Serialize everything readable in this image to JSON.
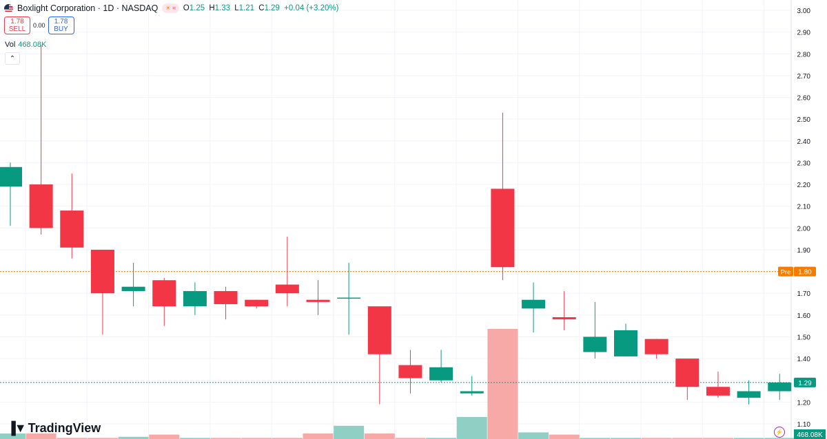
{
  "header": {
    "symbol": "Boxlight Corporation",
    "sep1": "·",
    "interval": "1D",
    "sep2": "·",
    "exchange": "NASDAQ",
    "open_label": "O",
    "open": "1.25",
    "high_label": "H",
    "high": "1.33",
    "low_label": "L",
    "low": "1.21",
    "close_label": "C",
    "close": "1.29",
    "change": "+0.04 (+3.20%)"
  },
  "trade": {
    "sell_price": "1.78",
    "sell_label": "SELL",
    "spread": "0.00",
    "buy_price": "1.78",
    "buy_label": "BUY"
  },
  "volume": {
    "label": "Vol",
    "value": "468.08K",
    "axis_badge": "468.08K"
  },
  "branding": {
    "logo_text": "TradingView"
  },
  "price_lines": {
    "pre": {
      "label": "Pre",
      "value": "1.80",
      "color": "#f57c00"
    },
    "last": {
      "value": "1.29",
      "color": "#089981"
    }
  },
  "colors": {
    "up": "#089981",
    "down": "#f23645",
    "up_vol": "#8fcfc4",
    "down_vol": "#f7a9a7"
  },
  "chart_data": {
    "type": "candlestick",
    "y_axis_ticks": [
      "3.00",
      "2.90",
      "2.80",
      "2.70",
      "2.60",
      "2.50",
      "2.40",
      "2.30",
      "2.20",
      "2.10",
      "2.00",
      "1.90",
      "1.80",
      "1.70",
      "1.60",
      "1.50",
      "1.40",
      "1.30",
      "1.20",
      "1.10"
    ],
    "ylim": [
      1.09,
      3.01
    ],
    "candles": [
      {
        "o": 2.19,
        "h": 2.3,
        "l": 2.01,
        "c": 2.28
      },
      {
        "o": 2.2,
        "h": 2.84,
        "l": 1.97,
        "c": 2.0
      },
      {
        "o": 2.08,
        "h": 2.25,
        "l": 1.86,
        "c": 1.91
      },
      {
        "o": 1.9,
        "h": 1.9,
        "l": 1.51,
        "c": 1.7
      },
      {
        "o": 1.71,
        "h": 1.84,
        "l": 1.64,
        "c": 1.73
      },
      {
        "o": 1.76,
        "h": 1.77,
        "l": 1.55,
        "c": 1.64
      },
      {
        "o": 1.64,
        "h": 1.75,
        "l": 1.6,
        "c": 1.71
      },
      {
        "o": 1.71,
        "h": 1.73,
        "l": 1.58,
        "c": 1.65
      },
      {
        "o": 1.67,
        "h": 1.67,
        "l": 1.63,
        "c": 1.64
      },
      {
        "o": 1.74,
        "h": 1.96,
        "l": 1.64,
        "c": 1.7
      },
      {
        "o": 1.67,
        "h": 1.76,
        "l": 1.6,
        "c": 1.66
      },
      {
        "o": 1.68,
        "h": 1.84,
        "l": 1.51,
        "c": 1.68
      },
      {
        "o": 1.64,
        "h": 1.64,
        "l": 1.19,
        "c": 1.42
      },
      {
        "o": 1.37,
        "h": 1.44,
        "l": 1.24,
        "c": 1.31
      },
      {
        "o": 1.3,
        "h": 1.44,
        "l": 1.29,
        "c": 1.36
      },
      {
        "o": 1.24,
        "h": 1.32,
        "l": 1.23,
        "c": 1.25
      },
      {
        "o": 2.18,
        "h": 2.53,
        "l": 1.76,
        "c": 1.82
      },
      {
        "o": 1.63,
        "h": 1.75,
        "l": 1.52,
        "c": 1.67
      },
      {
        "o": 1.59,
        "h": 1.71,
        "l": 1.53,
        "c": 1.58
      },
      {
        "o": 1.43,
        "h": 1.66,
        "l": 1.4,
        "c": 1.5
      },
      {
        "o": 1.41,
        "h": 1.56,
        "l": 1.41,
        "c": 1.53
      },
      {
        "o": 1.49,
        "h": 1.49,
        "l": 1.4,
        "c": 1.42
      },
      {
        "o": 1.4,
        "h": 1.4,
        "l": 1.21,
        "c": 1.27
      },
      {
        "o": 1.27,
        "h": 1.34,
        "l": 1.22,
        "c": 1.23
      },
      {
        "o": 1.22,
        "h": 1.3,
        "l": 1.19,
        "c": 1.25
      },
      {
        "o": 1.25,
        "h": 1.33,
        "l": 1.21,
        "c": 1.29
      }
    ],
    "volume_relative": [
      0.05,
      0.05,
      0.01,
      0.01,
      0.02,
      0.04,
      0.01,
      0.01,
      0.01,
      0.01,
      0.05,
      0.12,
      0.05,
      0.01,
      0.01,
      0.2,
      1.0,
      0.06,
      0.04,
      0.01,
      0.01,
      0.01,
      0.01,
      0.01,
      0.01,
      0.01
    ]
  }
}
